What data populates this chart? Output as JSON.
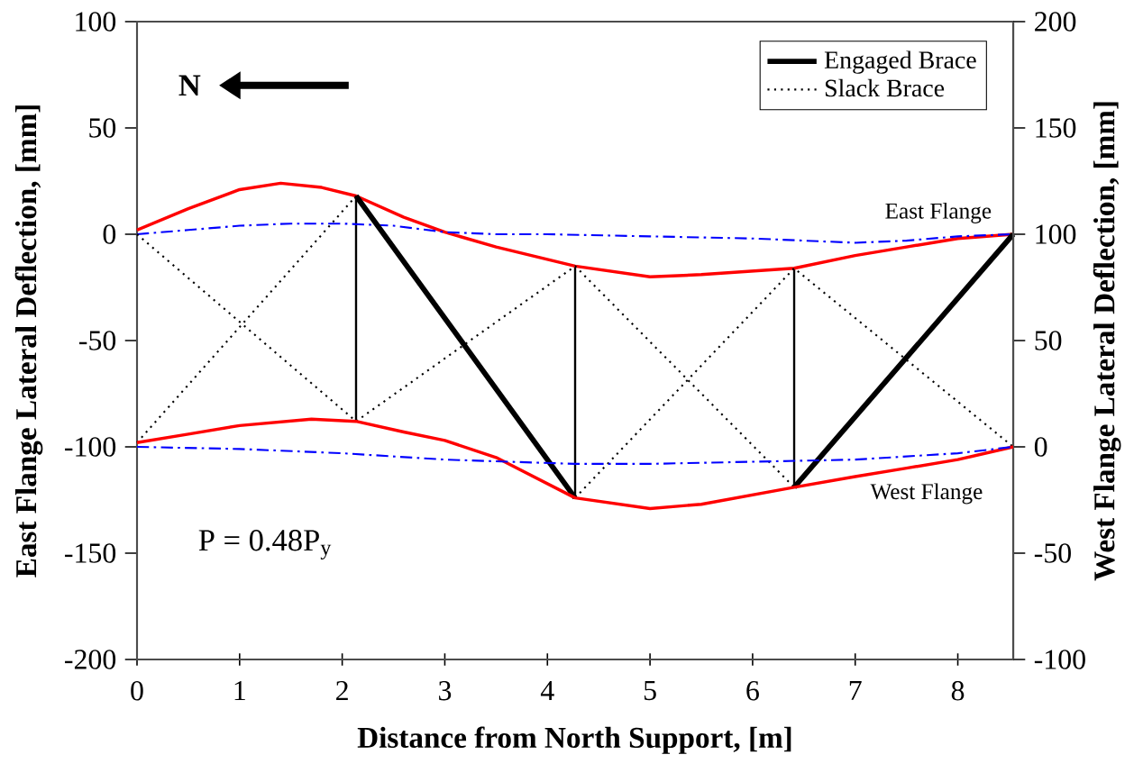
{
  "chart_data": {
    "type": "line",
    "xlabel": "Distance from North Support, [m]",
    "ylabel": "East Flange Lateral Deflection, [mm]",
    "y2label": "West Flange Lateral Deflection, [mm]",
    "xlim": [
      0,
      8.54
    ],
    "xticks": [
      0,
      1,
      2,
      3,
      4,
      5,
      6,
      7,
      8
    ],
    "ylim": [
      -200,
      100
    ],
    "yticks": [
      -200,
      -150,
      -100,
      -50,
      0,
      50,
      100
    ],
    "y2lim": [
      -100,
      200
    ],
    "y2ticks": [
      -100,
      -50,
      0,
      50,
      100,
      150,
      200
    ],
    "legend": "top right",
    "grid": false,
    "marker": "none",
    "annotations": [
      "N",
      "P = 0.48P$_{y}$",
      "East Flange",
      "West Flange"
    ],
    "series": [
      {
        "color": "#ff0000",
        "line_style": "solid",
        "x": [
          0,
          0.5,
          1,
          1.4,
          1.8,
          2.135,
          2.6,
          3,
          3.5,
          4.27,
          5,
          5.5,
          6.405,
          7,
          7.5,
          8,
          8.54
        ],
        "values": [
          2,
          12,
          21,
          24,
          22,
          18,
          8,
          1,
          -6,
          -15,
          -20,
          -19,
          -16,
          -10,
          -6,
          -2,
          0
        ]
      },
      {
        "color": "#0000ff",
        "line_style": "dashdot",
        "x": [
          0,
          0.5,
          1,
          1.5,
          2,
          2.5,
          3,
          3.5,
          4,
          5,
          6,
          7,
          7.5,
          8,
          8.54
        ],
        "values": [
          0,
          2,
          4,
          5,
          5,
          4,
          1,
          0,
          0,
          -1,
          -2,
          -4,
          -3,
          -1,
          0
        ]
      },
      {
        "color": "#ff0000",
        "line_style": "solid",
        "axis": "y2",
        "x": [
          0,
          0.5,
          1,
          1.7,
          2.135,
          2.6,
          3,
          3.5,
          4.27,
          5,
          5.5,
          6.405,
          7,
          7.5,
          8,
          8.54
        ],
        "values": [
          2,
          6,
          10,
          13,
          12,
          7,
          3,
          -5,
          -24,
          -29,
          -27,
          -19,
          -14,
          -10,
          -6,
          0
        ]
      },
      {
        "color": "#0000ff",
        "line_style": "dashdot",
        "axis": "y2",
        "x": [
          0,
          1,
          2,
          3,
          4.27,
          5,
          6,
          7,
          8,
          8.54
        ],
        "values": [
          0,
          -1,
          -3,
          -6,
          -8,
          -8,
          -7,
          -6,
          -3,
          0
        ]
      },
      {
        "name": "Engaged Brace",
        "color": "#000000",
        "line_style": "solid",
        "x": [
          2.135,
          4.27,
          5.3,
          6.405,
          8.54
        ],
        "values": [
          18,
          -124,
          null,
          -119,
          0
        ]
      },
      {
        "name": "Slack Brace",
        "color": "#000000",
        "line_style": "dotted",
        "x": [
          0,
          2.135,
          4.27,
          6.405,
          3,
          0,
          2.135,
          3,
          4.27,
          6.405,
          8.54
        ],
        "values": [
          0,
          -88,
          -15,
          -119,
          null,
          -98,
          18,
          null,
          -124,
          -16,
          -100
        ]
      }
    ]
  }
}
